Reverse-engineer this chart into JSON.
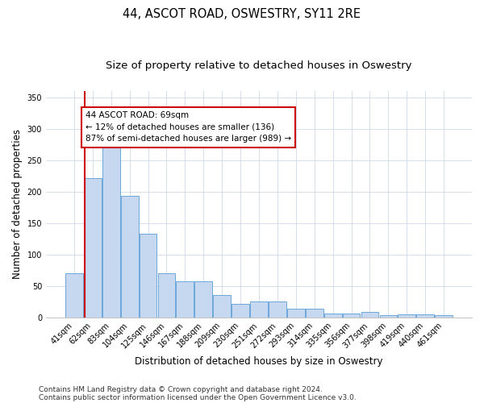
{
  "title": "44, ASCOT ROAD, OSWESTRY, SY11 2RE",
  "subtitle": "Size of property relative to detached houses in Oswestry",
  "xlabel": "Distribution of detached houses by size in Oswestry",
  "ylabel": "Number of detached properties",
  "categories": [
    "41sqm",
    "62sqm",
    "83sqm",
    "104sqm",
    "125sqm",
    "146sqm",
    "167sqm",
    "188sqm",
    "209sqm",
    "230sqm",
    "251sqm",
    "272sqm",
    "293sqm",
    "314sqm",
    "335sqm",
    "356sqm",
    "377sqm",
    "398sqm",
    "419sqm",
    "440sqm",
    "461sqm"
  ],
  "values": [
    70,
    222,
    280,
    193,
    133,
    70,
    57,
    57,
    35,
    22,
    25,
    25,
    14,
    14,
    6,
    6,
    9,
    4,
    5,
    5,
    3
  ],
  "bar_color": "#c5d8f0",
  "bar_edge_color": "#5b9bd5",
  "grid_color": "#d0d8e8",
  "annotation_text_line1": "44 ASCOT ROAD: 69sqm",
  "annotation_text_line2": "← 12% of detached houses are smaller (136)",
  "annotation_text_line3": "87% of semi-detached houses are larger (989) →",
  "annotation_box_color": "#ffffff",
  "annotation_border_color": "#cc0000",
  "vline_color": "#cc0000",
  "vline_x": 0.56,
  "ylim": [
    0,
    360
  ],
  "yticks": [
    0,
    50,
    100,
    150,
    200,
    250,
    300,
    350
  ],
  "footer_line1": "Contains HM Land Registry data © Crown copyright and database right 2024.",
  "footer_line2": "Contains public sector information licensed under the Open Government Licence v3.0.",
  "bg_color": "#ffffff",
  "title_fontsize": 10.5,
  "subtitle_fontsize": 9.5,
  "tick_fontsize": 7,
  "ylabel_fontsize": 8.5,
  "xlabel_fontsize": 8.5,
  "annotation_fontsize": 7.5,
  "footer_fontsize": 6.5
}
